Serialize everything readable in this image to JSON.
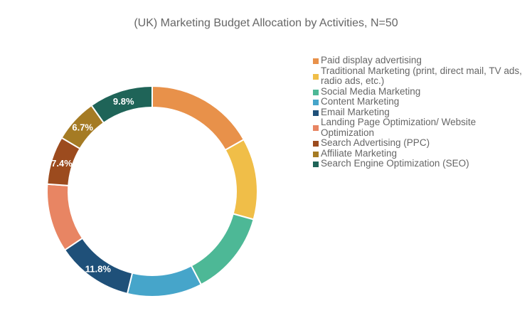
{
  "chart_data": {
    "type": "donut",
    "title": "(UK) Marketing Budget Allocation by Activities, N=50",
    "legend_position": "right",
    "series": [
      {
        "name": "Paid display advertising",
        "value": 16.8,
        "color": "#E8914A",
        "label": ""
      },
      {
        "name": "Traditional Marketing (print, direct mail, TV ads, radio ads, etc.)",
        "value": 12.5,
        "color": "#F0BE48",
        "label": ""
      },
      {
        "name": "Social Media Marketing",
        "value": 13.0,
        "color": "#4DB896",
        "label": ""
      },
      {
        "name": "Content Marketing",
        "value": 11.5,
        "color": "#46A5CA",
        "label": ""
      },
      {
        "name": "Email Marketing",
        "value": 11.8,
        "color": "#1F5079",
        "label": "11.8%"
      },
      {
        "name": "Landing Page Optimization/ Website Optimization",
        "value": 10.5,
        "color": "#E88563",
        "label": ""
      },
      {
        "name": "Search Advertising (PPC)",
        "value": 7.4,
        "color": "#9C4B1E",
        "label": "7.4%"
      },
      {
        "name": "Affiliate Marketing",
        "value": 6.7,
        "color": "#A57B24",
        "label": "6.7%"
      },
      {
        "name": "Search Engine Optimization (SEO)",
        "value": 9.8,
        "color": "#1F6458",
        "label": "9.8%"
      }
    ]
  }
}
